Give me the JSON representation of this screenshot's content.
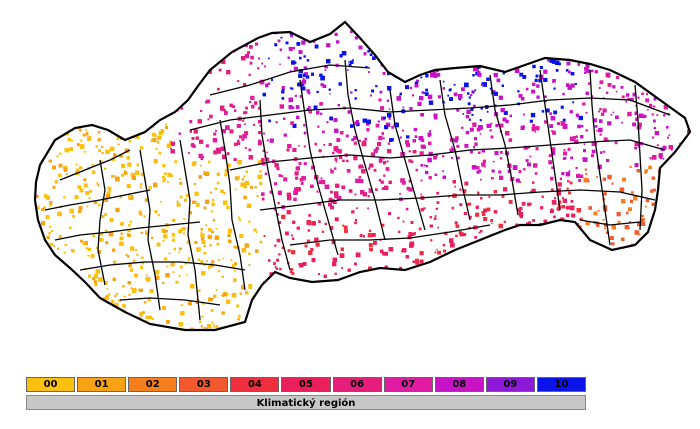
{
  "map": {
    "region_colors": [
      "#fbbf0e",
      "#f7a213",
      "#f57e1d",
      "#f2592e",
      "#ef2f3d",
      "#ea1f5b",
      "#e51d7b",
      "#e01ca2",
      "#c812c6",
      "#8e19d8",
      "#0b14e8"
    ],
    "border_color": "#000000"
  },
  "legend": {
    "items": [
      {
        "label": "00",
        "color": "#fbbf0e"
      },
      {
        "label": "01",
        "color": "#f7a213"
      },
      {
        "label": "02",
        "color": "#f57e1d"
      },
      {
        "label": "03",
        "color": "#f2592e"
      },
      {
        "label": "04",
        "color": "#ef2f3d"
      },
      {
        "label": "05",
        "color": "#ea1f5b"
      },
      {
        "label": "06",
        "color": "#e51d7b"
      },
      {
        "label": "07",
        "color": "#e01ca2"
      },
      {
        "label": "08",
        "color": "#c812c6"
      },
      {
        "label": "09",
        "color": "#8e19d8"
      },
      {
        "label": "10",
        "color": "#0b14e8"
      }
    ],
    "caption": "Klimatický región"
  }
}
